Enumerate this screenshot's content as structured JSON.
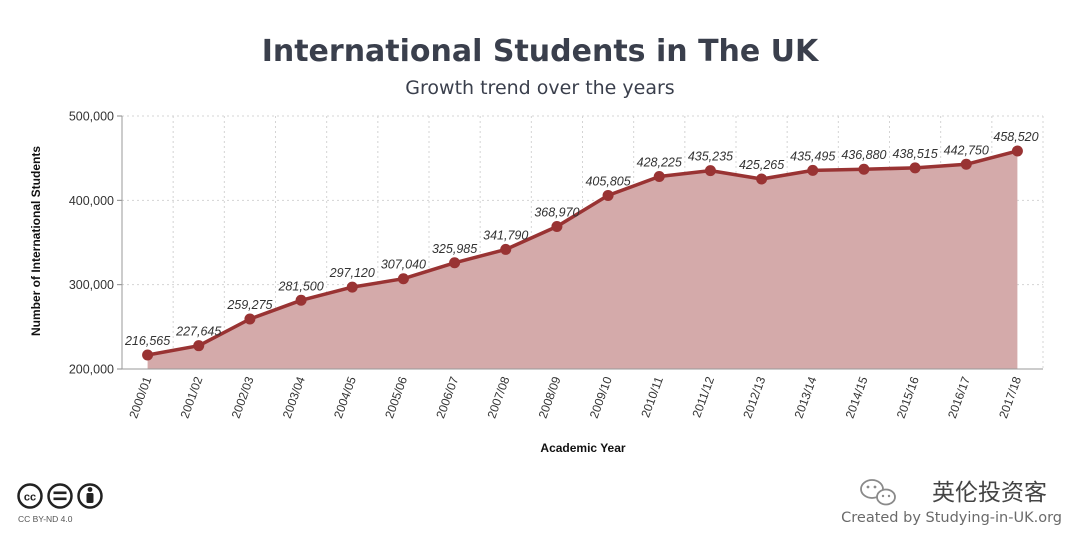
{
  "chart_data": {
    "type": "area",
    "title": "International Students in The UK",
    "subtitle": "Growth trend over the years",
    "xlabel": "Academic Year",
    "ylabel": "Number of International Students",
    "categories": [
      "2000/01",
      "2001/02",
      "2002/03",
      "2003/04",
      "2004/05",
      "2005/06",
      "2006/07",
      "2007/08",
      "2008/09",
      "2009/10",
      "2010/11",
      "2011/12",
      "2012/13",
      "2013/14",
      "2014/15",
      "2015/16",
      "2016/17",
      "2017/18"
    ],
    "values": [
      216565,
      227645,
      259275,
      281500,
      297120,
      307040,
      325985,
      341790,
      368970,
      405805,
      428225,
      435235,
      425265,
      435495,
      436880,
      438515,
      442750,
      458520
    ],
    "data_labels": [
      "216,565",
      "227,645",
      "259,275",
      "281,500",
      "297,120",
      "307,040",
      "325,985",
      "341,790",
      "368,970",
      "405,805",
      "428,225",
      "435,235",
      "425,265",
      "435,495",
      "436,880",
      "438,515",
      "442,750",
      "458,520"
    ],
    "yticks": [
      200000,
      300000,
      400000,
      500000
    ],
    "ytick_labels": [
      "200,000",
      "300,000",
      "400,000",
      "500,000"
    ],
    "ylim": [
      200000,
      500000
    ],
    "grid": true,
    "colors": {
      "line": "#993333",
      "fill": "#d4aaaa"
    }
  },
  "footer": {
    "license_text": "CC BY-ND 4.0",
    "license_icons": [
      "cc-icon",
      "nd-icon",
      "by-person-icon"
    ],
    "brand": "英伦投资客",
    "brand_icon": "wechat-icon",
    "credit": "Created by Studying-in-UK.org"
  }
}
